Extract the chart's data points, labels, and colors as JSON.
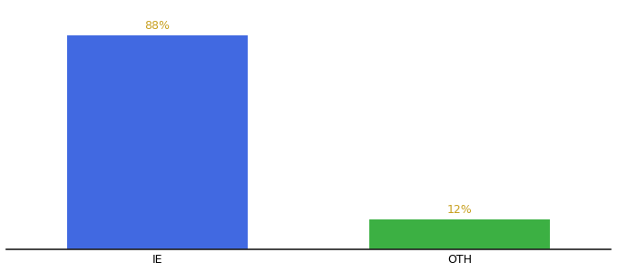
{
  "categories": [
    "IE",
    "OTH"
  ],
  "values": [
    88,
    12
  ],
  "bar_colors": [
    "#4169e1",
    "#3cb043"
  ],
  "value_labels": [
    "88%",
    "12%"
  ],
  "ylim": [
    0,
    100
  ],
  "bar_width": 0.6,
  "label_fontsize": 9,
  "tick_fontsize": 9,
  "title_fontsize": 11,
  "background_color": "#ffffff",
  "label_color": "#c8a020"
}
